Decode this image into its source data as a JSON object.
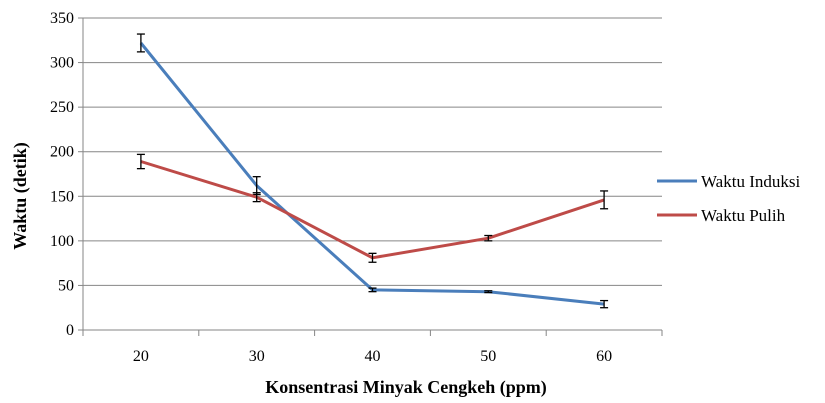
{
  "chart_data": {
    "type": "line",
    "title": "",
    "xlabel": "Konsentrasi Minyak Cengkeh (ppm)",
    "ylabel": "Waktu (detik)",
    "categories": [
      "20",
      "30",
      "40",
      "50",
      "60"
    ],
    "ylim": [
      0,
      350
    ],
    "yticks": [
      0,
      50,
      100,
      150,
      200,
      250,
      300,
      350
    ],
    "grid": "horizontal",
    "legend_position": "right",
    "series": [
      {
        "name": "Waktu Induksi",
        "color": "#4A7EBB",
        "values": [
          322,
          162,
          45,
          43,
          29
        ],
        "error": [
          10,
          10,
          2,
          1,
          4
        ]
      },
      {
        "name": "Waktu Pulih",
        "color": "#BE4B48",
        "values": [
          189,
          149,
          81,
          103,
          146
        ],
        "error": [
          8,
          5,
          5,
          3,
          10
        ]
      }
    ]
  }
}
